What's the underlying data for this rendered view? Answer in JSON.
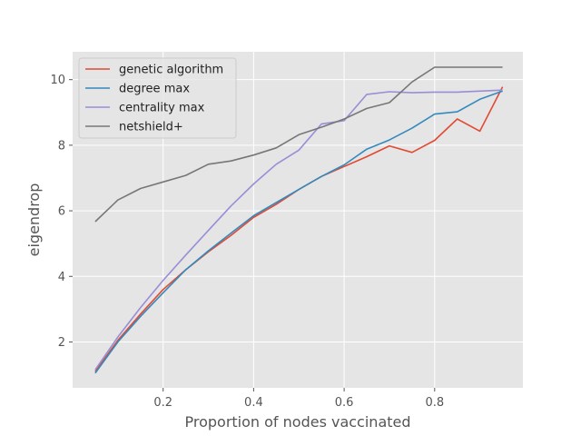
{
  "chart_data": {
    "type": "line",
    "title": "",
    "xlabel": "Proportion of nodes vaccinated",
    "ylabel": "eigendrop",
    "xlim": [
      0.0,
      0.995
    ],
    "ylim": [
      0.6,
      10.85
    ],
    "xticks": [
      0.2,
      0.4,
      0.6,
      0.8
    ],
    "xtick_labels": [
      "0.2",
      "0.4",
      "0.6",
      "0.8"
    ],
    "yticks": [
      2,
      4,
      6,
      8,
      10
    ],
    "ytick_labels": [
      "2",
      "4",
      "6",
      "8",
      "10"
    ],
    "grid": true,
    "legend_position": "upper-left",
    "x": [
      0.05,
      0.1,
      0.15,
      0.2,
      0.25,
      0.3,
      0.35,
      0.4,
      0.45,
      0.5,
      0.55,
      0.6,
      0.65,
      0.7,
      0.75,
      0.8,
      0.85,
      0.9,
      0.95
    ],
    "series": [
      {
        "name": "genetic algorithm",
        "color": "#E24A33",
        "values": [
          1.1,
          2.05,
          2.85,
          3.6,
          4.2,
          4.75,
          5.25,
          5.8,
          6.2,
          6.65,
          7.05,
          7.35,
          7.65,
          7.98,
          7.78,
          8.15,
          8.8,
          8.43,
          9.78
        ]
      },
      {
        "name": "degree max",
        "color": "#348ABD",
        "values": [
          1.05,
          2.0,
          2.78,
          3.5,
          4.2,
          4.78,
          5.32,
          5.85,
          6.25,
          6.65,
          7.05,
          7.4,
          7.88,
          8.16,
          8.52,
          8.95,
          9.02,
          9.4,
          9.65
        ]
      },
      {
        "name": "centrality max",
        "color": "#988ED5",
        "values": [
          1.15,
          2.15,
          3.05,
          3.88,
          4.65,
          5.4,
          6.15,
          6.82,
          7.42,
          7.85,
          8.65,
          8.75,
          9.55,
          9.63,
          9.6,
          9.62,
          9.62,
          9.65,
          9.68
        ]
      },
      {
        "name": "netshield+",
        "color": "#777777",
        "values": [
          5.67,
          6.33,
          6.68,
          6.88,
          7.08,
          7.42,
          7.52,
          7.7,
          7.92,
          8.32,
          8.55,
          8.8,
          9.12,
          9.3,
          9.93,
          10.38,
          10.38,
          10.38,
          10.38
        ]
      }
    ]
  }
}
